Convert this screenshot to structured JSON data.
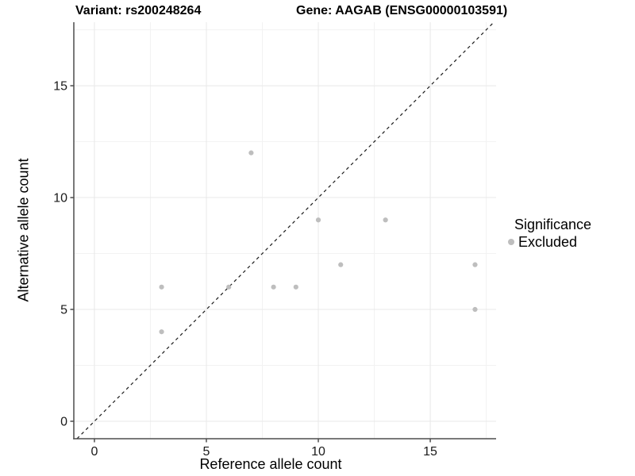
{
  "header": {
    "title_left": "Variant: rs200248264",
    "title_right": "Gene: AAGAB (ENSG00000103591)"
  },
  "chart_data": {
    "type": "scatter",
    "title": "Variant: rs200248264    Gene: AAGAB (ENSG00000103591)",
    "xlabel": "Reference allele count",
    "ylabel": "Alternative allele count",
    "xlim": [
      -0.92,
      17.94
    ],
    "ylim": [
      -0.78,
      17.84
    ],
    "x_major_ticks": [
      0,
      5,
      10,
      15
    ],
    "y_major_ticks": [
      0,
      5,
      10,
      15
    ],
    "x_minor_ticks": [
      2.5,
      7.5,
      12.5,
      17.5
    ],
    "y_minor_ticks": [
      2.5,
      7.5,
      12.5,
      17.5
    ],
    "grid": true,
    "identity_line": {
      "equation": "y = x",
      "style": "dashed",
      "color": "#1a1a1a"
    },
    "series": [
      {
        "name": "Excluded",
        "color": "#bebebe",
        "points": [
          [
            3,
            4
          ],
          [
            3,
            6
          ],
          [
            6,
            6
          ],
          [
            7,
            12
          ],
          [
            8,
            6
          ],
          [
            9,
            6
          ],
          [
            10,
            9
          ],
          [
            11,
            7
          ],
          [
            13,
            9
          ],
          [
            17,
            5
          ],
          [
            17,
            7
          ]
        ]
      }
    ],
    "legend": {
      "title": "Significance",
      "position": "right",
      "items": [
        {
          "label": "Excluded",
          "color": "#bebebe"
        }
      ]
    },
    "colors": {
      "point": "#bebebe",
      "grid_major": "#e8e8e8",
      "grid_minor": "#f2f2f2",
      "axis_line": "#4d4d4d",
      "tick_label": "#1a1a1a",
      "background": "#ffffff"
    }
  }
}
